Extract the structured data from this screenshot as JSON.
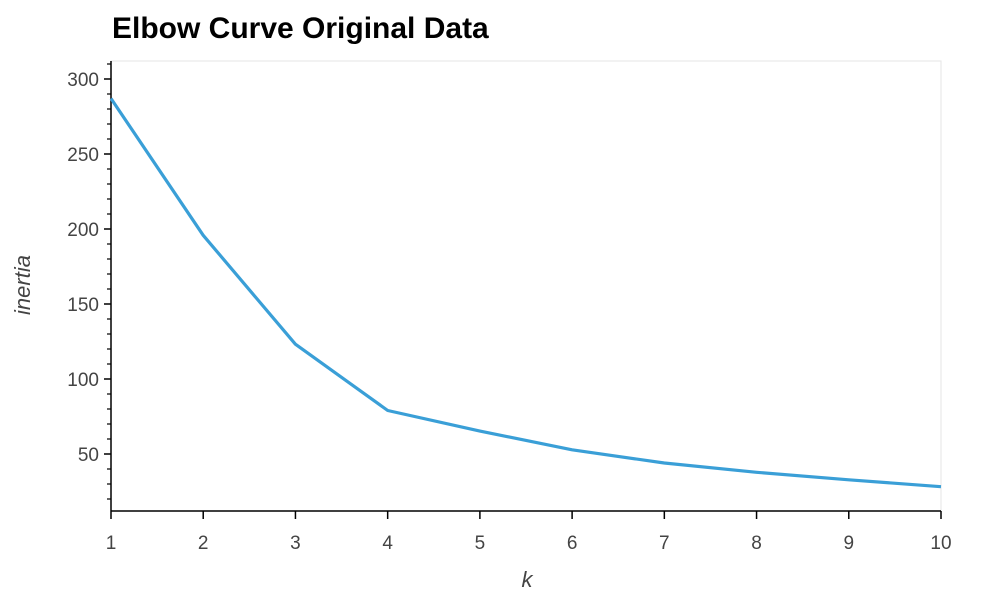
{
  "chart_data": {
    "type": "line",
    "title": "Elbow Curve Original Data",
    "xlabel": "k",
    "ylabel": "inertia",
    "x": [
      1,
      2,
      3,
      4,
      5,
      6,
      7,
      8,
      9,
      10
    ],
    "series": [
      {
        "values": [
          287.0,
          195.8,
          123.2,
          79.0,
          65.3,
          52.8,
          44.0,
          37.8,
          32.8,
          28.2
        ]
      }
    ],
    "xlim": [
      1,
      10
    ],
    "ylim": [
      12,
      312
    ],
    "xticks": [
      1,
      2,
      3,
      4,
      5,
      6,
      7,
      8,
      9,
      10
    ],
    "yticks": [
      50,
      100,
      150,
      200,
      250,
      300
    ],
    "grid": false,
    "legend": "none",
    "colors": {
      "line": "#3a9fd7",
      "axis": "#000000",
      "frame": "#e5e5e5",
      "text": "#444444"
    }
  }
}
